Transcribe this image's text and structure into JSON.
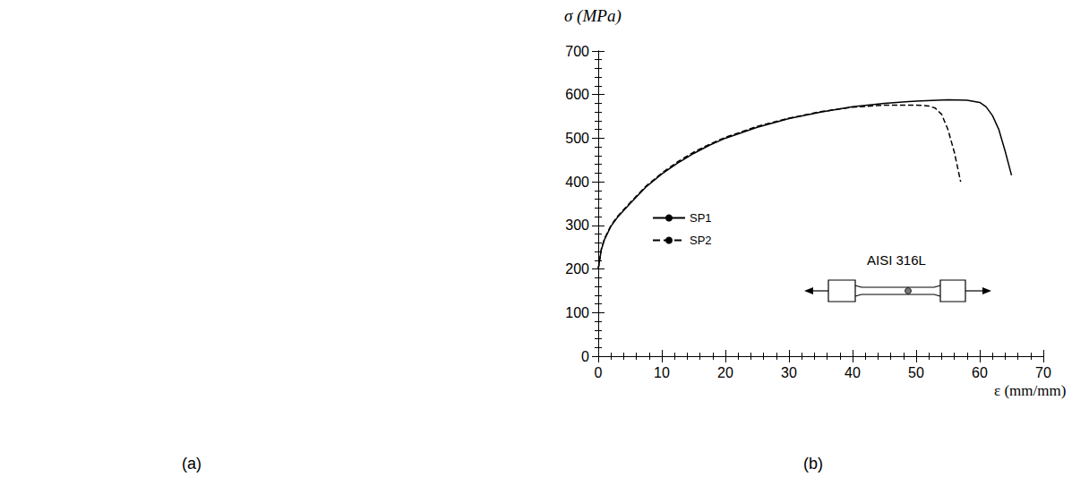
{
  "panel_labels": [
    "(a)",
    "(b)"
  ],
  "chart_data": {
    "type": "line",
    "y_label": "σ (MPa)",
    "x_label": "ε (mm/mm)",
    "annotation": "AISI 316L",
    "xlim": [
      0,
      70
    ],
    "xticks": [
      0,
      10,
      20,
      30,
      40,
      50,
      60,
      70
    ],
    "ylim": [
      0,
      700
    ],
    "yticks": [
      0,
      100,
      200,
      300,
      400,
      500,
      600,
      700
    ],
    "grid": false,
    "legend": "left",
    "series": [
      {
        "name": "SP1",
        "color": "#000000",
        "line_style": "solid",
        "marker": "none",
        "x": [
          0,
          0.5,
          1,
          2,
          3,
          5,
          7.5,
          10,
          12.5,
          15,
          17.5,
          20,
          25,
          30,
          35,
          40,
          45,
          50,
          55,
          58,
          60,
          61,
          62,
          63,
          64,
          65
        ],
        "values": [
          200,
          245,
          268,
          298,
          318,
          350,
          388,
          418,
          443,
          465,
          484,
          500,
          525,
          545,
          560,
          572,
          580,
          585,
          588,
          587,
          582,
          572,
          552,
          520,
          470,
          415
        ]
      },
      {
        "name": "SP2",
        "color": "#000000",
        "line_style": "dashed",
        "marker": "none",
        "x": [
          0,
          0.5,
          1,
          2,
          3,
          5,
          7.5,
          10,
          12.5,
          15,
          17.5,
          20,
          25,
          30,
          35,
          40,
          45,
          50,
          52,
          53,
          54,
          55,
          56,
          57
        ],
        "values": [
          200,
          247,
          270,
          300,
          320,
          352,
          390,
          420,
          446,
          468,
          486,
          502,
          527,
          546,
          561,
          571,
          576,
          576,
          574,
          569,
          555,
          520,
          468,
          400
        ]
      }
    ]
  }
}
